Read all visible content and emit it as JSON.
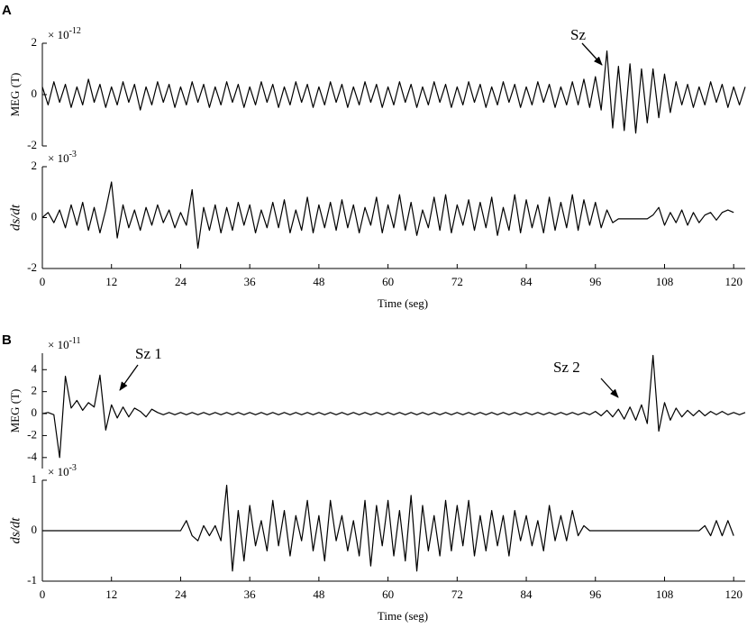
{
  "panel_labels": [
    "A",
    "B"
  ],
  "chart_data": [
    {
      "type": "line",
      "ylabel": "MEG (T)",
      "exponent_base": "× 10",
      "exponent": "-12",
      "xlim": [
        0,
        122
      ],
      "ylim": [
        -2,
        2
      ],
      "yticks": [
        -2,
        0,
        2
      ],
      "color": "#000000",
      "annotations": [
        "Sz"
      ],
      "x": [
        0,
        1,
        2,
        3,
        4,
        5,
        6,
        7,
        8,
        9,
        10,
        11,
        12,
        13,
        14,
        15,
        16,
        17,
        18,
        19,
        20,
        21,
        22,
        23,
        24,
        25,
        26,
        27,
        28,
        29,
        30,
        31,
        32,
        33,
        34,
        35,
        36,
        37,
        38,
        39,
        40,
        41,
        42,
        43,
        44,
        45,
        46,
        47,
        48,
        49,
        50,
        51,
        52,
        53,
        54,
        55,
        56,
        57,
        58,
        59,
        60,
        61,
        62,
        63,
        64,
        65,
        66,
        67,
        68,
        69,
        70,
        71,
        72,
        73,
        74,
        75,
        76,
        77,
        78,
        79,
        80,
        81,
        82,
        83,
        84,
        85,
        86,
        87,
        88,
        89,
        90,
        91,
        92,
        93,
        94,
        95,
        96,
        97,
        98,
        99,
        100,
        101,
        102,
        103,
        104,
        105,
        106,
        107,
        108,
        109,
        110,
        111,
        112,
        113,
        114,
        115,
        116,
        117,
        118,
        119,
        120,
        121,
        122
      ],
      "values": [
        0.3,
        -0.4,
        0.5,
        -0.3,
        0.4,
        -0.5,
        0.3,
        -0.4,
        0.6,
        -0.3,
        0.4,
        -0.5,
        0.3,
        -0.4,
        0.5,
        -0.3,
        0.4,
        -0.6,
        0.3,
        -0.4,
        0.5,
        -0.3,
        0.4,
        -0.5,
        0.3,
        -0.4,
        0.5,
        -0.3,
        0.4,
        -0.5,
        0.3,
        -0.4,
        0.5,
        -0.3,
        0.4,
        -0.5,
        0.3,
        -0.4,
        0.5,
        -0.3,
        0.4,
        -0.5,
        0.3,
        -0.4,
        0.5,
        -0.3,
        0.4,
        -0.5,
        0.3,
        -0.4,
        0.5,
        -0.3,
        0.4,
        -0.5,
        0.3,
        -0.4,
        0.5,
        -0.3,
        0.4,
        -0.5,
        0.3,
        -0.4,
        0.5,
        -0.3,
        0.4,
        -0.5,
        0.3,
        -0.4,
        0.5,
        -0.3,
        0.4,
        -0.5,
        0.3,
        -0.4,
        0.5,
        -0.3,
        0.4,
        -0.5,
        0.3,
        -0.4,
        0.5,
        -0.3,
        0.4,
        -0.5,
        0.3,
        -0.4,
        0.5,
        -0.3,
        0.4,
        -0.5,
        0.3,
        -0.4,
        0.5,
        -0.4,
        0.6,
        -0.5,
        0.7,
        -0.6,
        1.7,
        -1.3,
        1.1,
        -1.4,
        1.2,
        -1.5,
        1.0,
        -1.1,
        1.0,
        -0.9,
        0.8,
        -0.7,
        0.5,
        -0.4,
        0.4,
        -0.5,
        0.3,
        -0.4,
        0.5,
        -0.3,
        0.4,
        -0.5,
        0.3,
        -0.4,
        0.3
      ]
    },
    {
      "type": "line",
      "ylabel": "ds/dt",
      "exponent_base": "× 10",
      "exponent": "-3",
      "xlabel": "Time (seg)",
      "xlim": [
        0,
        122
      ],
      "ylim": [
        -2,
        2
      ],
      "yticks": [
        -2,
        0,
        2
      ],
      "xticks": [
        0,
        12,
        24,
        36,
        48,
        60,
        72,
        84,
        96,
        108,
        120
      ],
      "color": "#000000",
      "x": [
        0,
        1,
        2,
        3,
        4,
        5,
        6,
        7,
        8,
        9,
        10,
        11,
        12,
        13,
        14,
        15,
        16,
        17,
        18,
        19,
        20,
        21,
        22,
        23,
        24,
        25,
        26,
        27,
        28,
        29,
        30,
        31,
        32,
        33,
        34,
        35,
        36,
        37,
        38,
        39,
        40,
        41,
        42,
        43,
        44,
        45,
        46,
        47,
        48,
        49,
        50,
        51,
        52,
        53,
        54,
        55,
        56,
        57,
        58,
        59,
        60,
        61,
        62,
        63,
        64,
        65,
        66,
        67,
        68,
        69,
        70,
        71,
        72,
        73,
        74,
        75,
        76,
        77,
        78,
        79,
        80,
        81,
        82,
        83,
        84,
        85,
        86,
        87,
        88,
        89,
        90,
        91,
        92,
        93,
        94,
        95,
        96,
        97,
        98,
        99,
        100,
        101,
        102,
        103,
        104,
        105,
        106,
        107,
        108,
        109,
        110,
        111,
        112,
        113,
        114,
        115,
        116,
        117,
        118,
        119,
        120
      ],
      "values": [
        0,
        0.2,
        -0.2,
        0.3,
        -0.4,
        0.5,
        -0.3,
        0.6,
        -0.5,
        0.4,
        -0.6,
        0.3,
        1.4,
        -0.8,
        0.5,
        -0.4,
        0.3,
        -0.5,
        0.4,
        -0.3,
        0.5,
        -0.2,
        0.3,
        -0.4,
        0.2,
        -0.3,
        1.1,
        -1.2,
        0.4,
        -0.5,
        0.5,
        -0.6,
        0.4,
        -0.5,
        0.6,
        -0.3,
        0.5,
        -0.6,
        0.3,
        -0.4,
        0.6,
        -0.4,
        0.7,
        -0.6,
        0.3,
        -0.5,
        0.8,
        -0.6,
        0.5,
        -0.4,
        0.6,
        -0.5,
        0.7,
        -0.4,
        0.5,
        -0.6,
        0.4,
        -0.3,
        0.8,
        -0.6,
        0.5,
        -0.4,
        0.9,
        -0.5,
        0.6,
        -0.7,
        0.3,
        -0.4,
        0.8,
        -0.5,
        0.9,
        -0.6,
        0.5,
        -0.3,
        0.7,
        -0.5,
        0.6,
        -0.4,
        0.8,
        -0.7,
        0.4,
        -0.5,
        0.9,
        -0.6,
        0.7,
        -0.4,
        0.5,
        -0.6,
        0.8,
        -0.5,
        0.6,
        -0.4,
        0.9,
        -0.5,
        0.7,
        -0.3,
        0.6,
        -0.4,
        0.3,
        -0.2,
        -0.05,
        -0.05,
        -0.05,
        -0.05,
        -0.05,
        -0.05,
        0.1,
        0.4,
        -0.3,
        0.2,
        -0.2,
        0.3,
        -0.3,
        0.2,
        -0.2,
        0.1,
        0.2,
        -0.1,
        0.2,
        0.3,
        0.2
      ]
    },
    {
      "type": "line",
      "ylabel": "MEG (T)",
      "exponent_base": "× 10",
      "exponent": "-11",
      "xlim": [
        0,
        122
      ],
      "ylim": [
        -5,
        5.5
      ],
      "yticks": [
        -4,
        -2,
        0,
        2,
        4
      ],
      "color": "#000000",
      "annotations": [
        "Sz 1",
        "Sz 2"
      ],
      "x": [
        0,
        1,
        2,
        3,
        4,
        5,
        6,
        7,
        8,
        9,
        10,
        11,
        12,
        13,
        14,
        15,
        16,
        17,
        18,
        19,
        20,
        21,
        22,
        23,
        24,
        25,
        26,
        27,
        28,
        29,
        30,
        31,
        32,
        33,
        34,
        35,
        36,
        37,
        38,
        39,
        40,
        41,
        42,
        43,
        44,
        45,
        46,
        47,
        48,
        49,
        50,
        51,
        52,
        53,
        54,
        55,
        56,
        57,
        58,
        59,
        60,
        61,
        62,
        63,
        64,
        65,
        66,
        67,
        68,
        69,
        70,
        71,
        72,
        73,
        74,
        75,
        76,
        77,
        78,
        79,
        80,
        81,
        82,
        83,
        84,
        85,
        86,
        87,
        88,
        89,
        90,
        91,
        92,
        93,
        94,
        95,
        96,
        97,
        98,
        99,
        100,
        101,
        102,
        103,
        104,
        105,
        106,
        107,
        108,
        109,
        110,
        111,
        112,
        113,
        114,
        115,
        116,
        117,
        118,
        119,
        120,
        121,
        122
      ],
      "values": [
        0,
        0.1,
        -0.1,
        -4.0,
        3.4,
        0.5,
        1.2,
        0.3,
        1.0,
        0.6,
        3.5,
        -1.5,
        0.8,
        -0.4,
        0.6,
        -0.3,
        0.5,
        0.2,
        -0.3,
        0.4,
        0.1,
        -0.1,
        0.1,
        -0.1,
        0.1,
        -0.1,
        0.1,
        -0.1,
        0.1,
        -0.1,
        0.1,
        -0.1,
        0.1,
        -0.1,
        0.1,
        -0.1,
        0.1,
        -0.1,
        0.1,
        -0.1,
        0.1,
        -0.1,
        0.1,
        -0.1,
        0.1,
        -0.1,
        0.1,
        -0.1,
        0.1,
        -0.1,
        0.1,
        -0.1,
        0.1,
        -0.1,
        0.1,
        -0.1,
        0.1,
        -0.1,
        0.1,
        -0.1,
        0.1,
        -0.1,
        0.1,
        -0.1,
        0.1,
        -0.1,
        0.1,
        -0.1,
        0.1,
        -0.1,
        0.1,
        -0.1,
        0.1,
        -0.1,
        0.1,
        -0.1,
        0.1,
        -0.1,
        0.1,
        -0.1,
        0.1,
        -0.1,
        0.1,
        -0.1,
        0.1,
        -0.1,
        0.1,
        -0.1,
        0.1,
        -0.1,
        0.1,
        -0.1,
        0.1,
        -0.1,
        0.1,
        -0.1,
        0.2,
        -0.2,
        0.3,
        -0.3,
        0.4,
        -0.5,
        0.6,
        -0.6,
        0.8,
        -0.9,
        5.3,
        -1.6,
        1.0,
        -0.6,
        0.5,
        -0.3,
        0.3,
        -0.2,
        0.3,
        -0.2,
        0.2,
        -0.1,
        0.2,
        -0.1,
        0.1,
        -0.1,
        0.1
      ]
    },
    {
      "type": "line",
      "ylabel": "ds/dt",
      "exponent_base": "× 10",
      "exponent": "-3",
      "xlabel": "Time (seg)",
      "xlim": [
        0,
        122
      ],
      "ylim": [
        -1,
        1
      ],
      "yticks": [
        -1,
        0,
        1
      ],
      "xticks": [
        0,
        12,
        24,
        36,
        48,
        60,
        72,
        84,
        96,
        108,
        120
      ],
      "color": "#000000",
      "x": [
        0,
        1,
        2,
        3,
        4,
        5,
        6,
        7,
        8,
        9,
        10,
        11,
        12,
        13,
        14,
        15,
        16,
        17,
        18,
        19,
        20,
        21,
        22,
        23,
        24,
        25,
        26,
        27,
        28,
        29,
        30,
        31,
        32,
        33,
        34,
        35,
        36,
        37,
        38,
        39,
        40,
        41,
        42,
        43,
        44,
        45,
        46,
        47,
        48,
        49,
        50,
        51,
        52,
        53,
        54,
        55,
        56,
        57,
        58,
        59,
        60,
        61,
        62,
        63,
        64,
        65,
        66,
        67,
        68,
        69,
        70,
        71,
        72,
        73,
        74,
        75,
        76,
        77,
        78,
        79,
        80,
        81,
        82,
        83,
        84,
        85,
        86,
        87,
        88,
        89,
        90,
        91,
        92,
        93,
        94,
        95,
        96,
        97,
        98,
        99,
        100,
        101,
        102,
        103,
        104,
        105,
        106,
        107,
        108,
        109,
        110,
        111,
        112,
        113,
        114,
        115,
        116,
        117,
        118,
        119,
        120
      ],
      "values": [
        0,
        0,
        0,
        0,
        0,
        0,
        0,
        0,
        0,
        0,
        0,
        0,
        0,
        0,
        0,
        0,
        0,
        0,
        0,
        0,
        0,
        0,
        0,
        0,
        0,
        0.2,
        -0.1,
        -0.2,
        0.1,
        -0.1,
        0.1,
        -0.2,
        0.9,
        -0.8,
        0.4,
        -0.6,
        0.5,
        -0.3,
        0.2,
        -0.4,
        0.6,
        -0.3,
        0.4,
        -0.5,
        0.3,
        -0.2,
        0.6,
        -0.4,
        0.3,
        -0.6,
        0.6,
        -0.2,
        0.3,
        -0.4,
        0.2,
        -0.5,
        0.6,
        -0.7,
        0.5,
        -0.3,
        0.6,
        -0.5,
        0.4,
        -0.6,
        0.7,
        -0.8,
        0.5,
        -0.4,
        0.3,
        -0.5,
        0.6,
        -0.4,
        0.5,
        -0.3,
        0.6,
        -0.5,
        0.3,
        -0.4,
        0.4,
        -0.3,
        0.3,
        -0.5,
        0.4,
        -0.2,
        0.3,
        -0.3,
        0.2,
        -0.4,
        0.5,
        -0.2,
        0.3,
        -0.2,
        0.4,
        -0.1,
        0.1,
        0,
        0,
        0,
        0,
        0,
        0,
        0,
        0,
        0,
        0,
        0,
        0,
        0,
        0,
        0,
        0,
        0,
        0,
        0,
        0,
        0.1,
        -0.1,
        0.2,
        -0.1,
        0.2,
        -0.1
      ]
    }
  ]
}
